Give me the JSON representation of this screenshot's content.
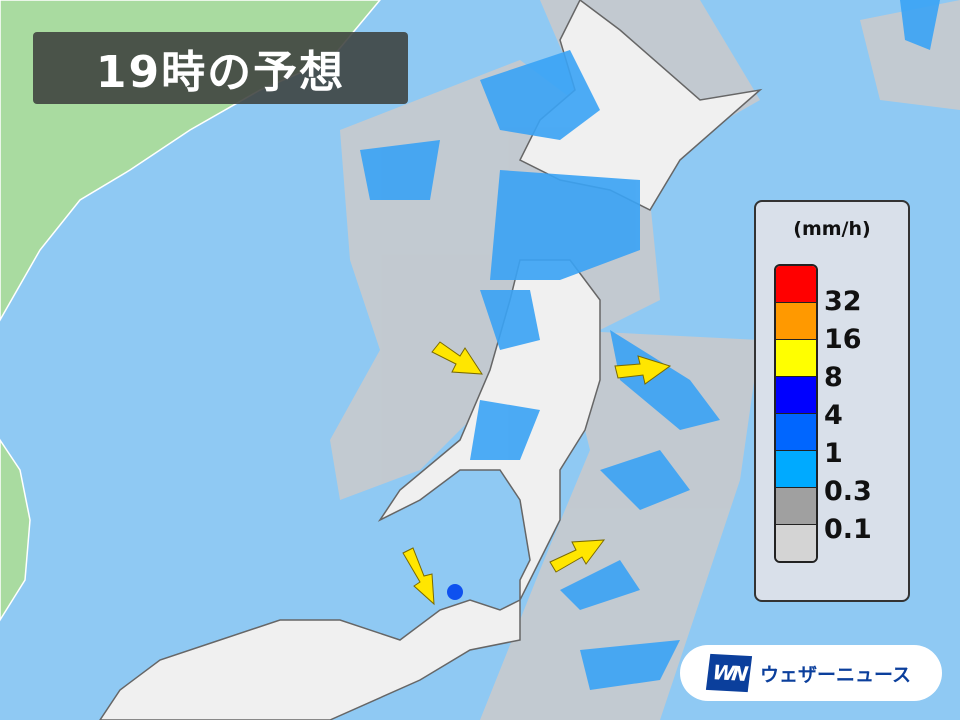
{
  "title": "19時の予想",
  "legend": {
    "unit": "(mm/h)",
    "swatches": [
      {
        "color": "#ff0000"
      },
      {
        "color": "#ff9900"
      },
      {
        "color": "#ffff00"
      },
      {
        "color": "#0000ff"
      },
      {
        "color": "#0066ff"
      },
      {
        "color": "#00aaff"
      },
      {
        "color": "#a0a0a0"
      },
      {
        "color": "#d4d4d4"
      }
    ],
    "labels": [
      "32",
      "16",
      "8",
      "4",
      "1",
      "0.3",
      "0.1"
    ]
  },
  "logo": {
    "mark": "WN",
    "name": "ウェザーニュース"
  },
  "colors": {
    "sea": "#8fc9f3",
    "continent": "#a9dba0",
    "land": "#f2f2f2",
    "arrow": "#ffe600"
  }
}
